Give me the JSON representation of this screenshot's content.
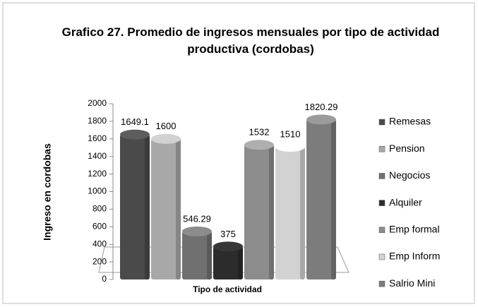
{
  "chart_data": {
    "type": "bar",
    "title": "Grafico 27. Promedio de ingresos  mensuales por tipo de actividad productiva (cordobas)",
    "y_label": "Ingreso en cordobas",
    "x_label": "Tipo de actividad",
    "categories": [
      null
    ],
    "series": [
      {
        "name": "Remesas",
        "color": "#4a4a4a",
        "values": [
          1649.1
        ]
      },
      {
        "name": "Pension",
        "color": "#a8a8a8",
        "values": [
          1600
        ]
      },
      {
        "name": "Negocios",
        "color": "#707070",
        "values": [
          546.29
        ]
      },
      {
        "name": "Alquiler",
        "color": "#2c2c2c",
        "values": [
          375
        ]
      },
      {
        "name": "Emp formal",
        "color": "#8c8c8c",
        "values": [
          1532
        ]
      },
      {
        "name": "Emp Inform",
        "color": "#d2d2d2",
        "values": [
          1510
        ]
      },
      {
        "name": "Salrio Mini",
        "color": "#7c7c7c",
        "values": [
          1820.29
        ]
      }
    ],
    "ylim": [
      0,
      2000
    ],
    "yticks": [
      0,
      200,
      400,
      600,
      800,
      1000,
      1200,
      1400,
      1600,
      1800,
      2000
    ],
    "legend": "right"
  }
}
